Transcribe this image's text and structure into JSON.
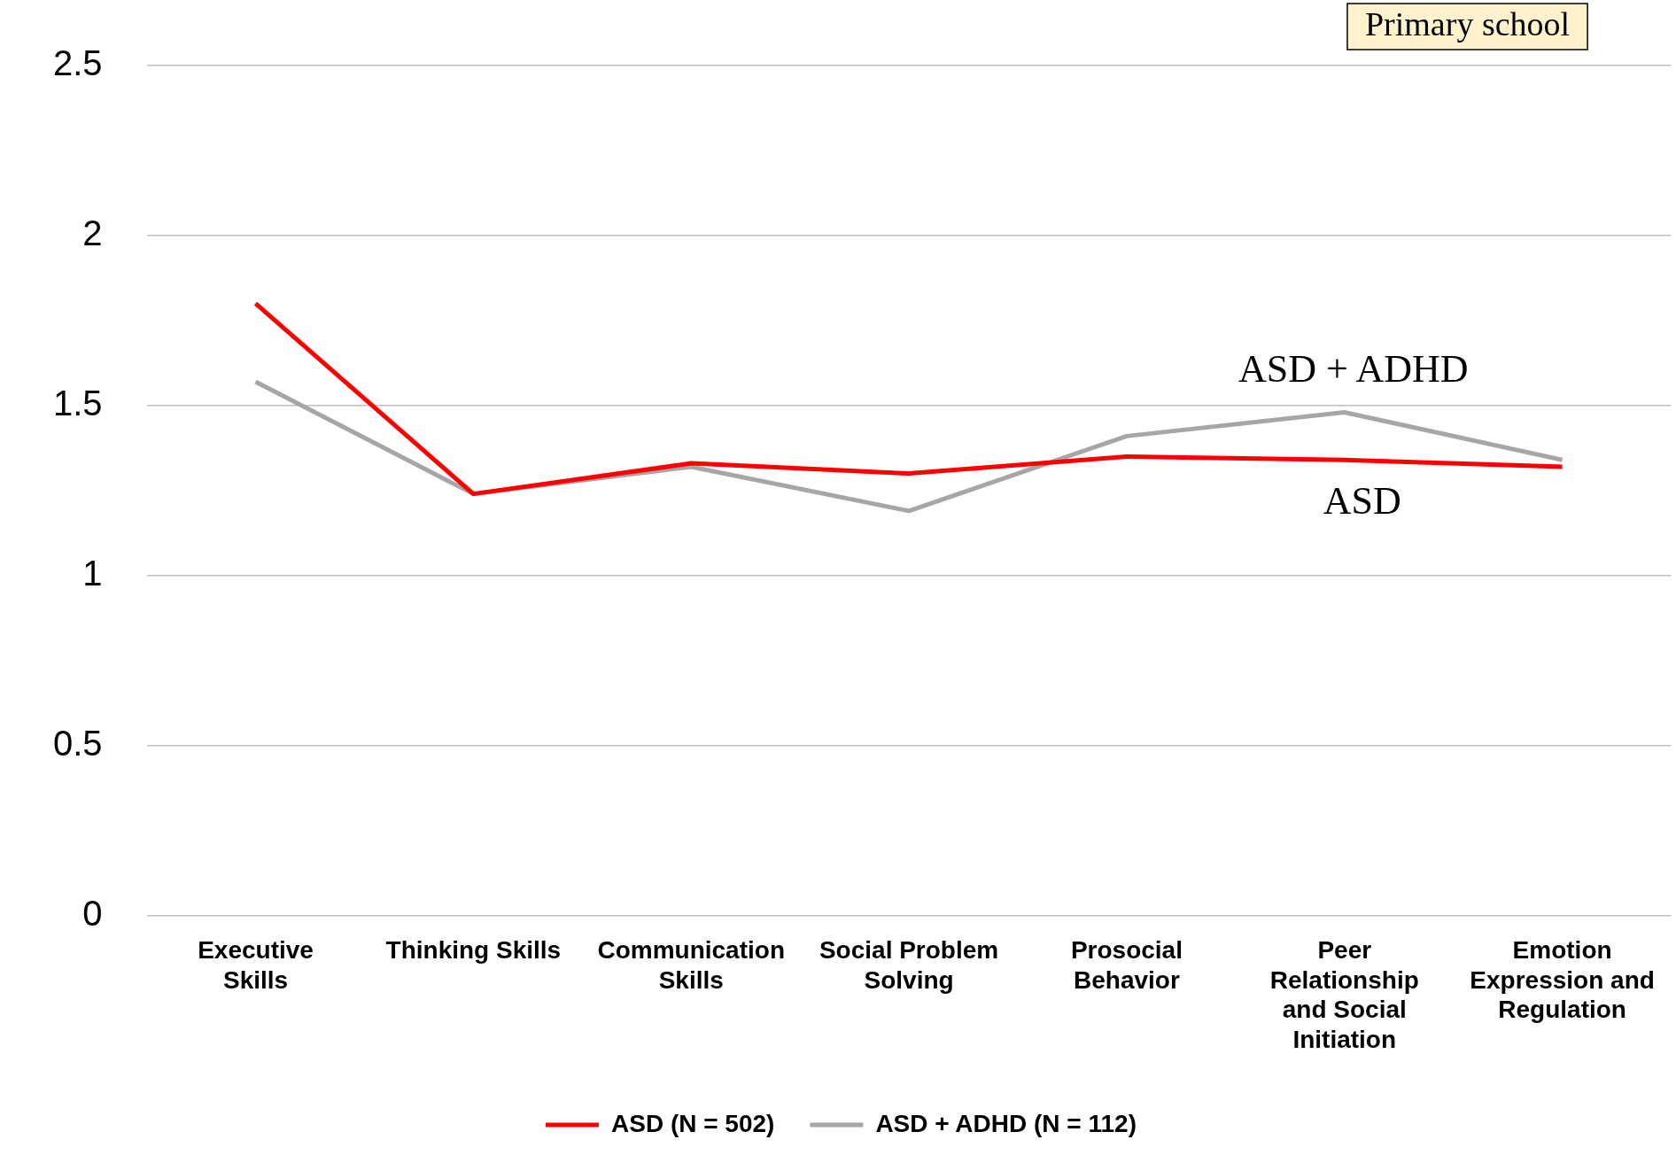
{
  "chart_data": {
    "type": "line",
    "categories": [
      "Executive Skills",
      "Thinking Skills",
      "Communication Skills",
      "Social Problem Solving",
      "Prosocial Behavior",
      "Peer Relationship and Social Initiation",
      "Emotion Expression and Regulation"
    ],
    "series": [
      {
        "name": "ASD (N = 502)",
        "color": "#ff0000",
        "values": [
          1.8,
          1.24,
          1.33,
          1.3,
          1.35,
          1.34,
          1.32
        ]
      },
      {
        "name": "ASD + ADHD (N = 112)",
        "color": "#a6a6a6",
        "values": [
          1.57,
          1.24,
          1.32,
          1.19,
          1.41,
          1.48,
          1.34
        ]
      }
    ],
    "ylim": [
      0,
      2.5
    ],
    "yticks": [
      0,
      0.5,
      1,
      1.5,
      2,
      2.5
    ],
    "grid": "y",
    "legend": "bottom",
    "marker": "none",
    "annotations": [
      "Primary school",
      "ASD + ADHD",
      "ASD"
    ]
  }
}
